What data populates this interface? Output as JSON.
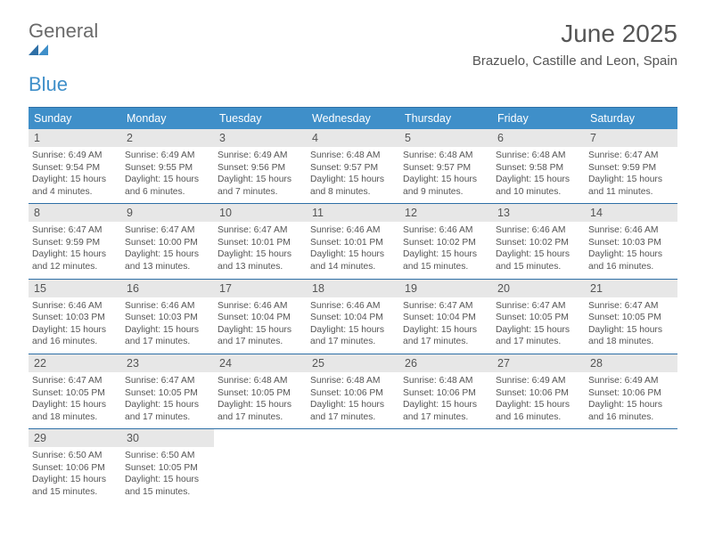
{
  "brand": {
    "general": "General",
    "blue": "Blue"
  },
  "title": "June 2025",
  "subtitle": "Brazuelo, Castille and Leon, Spain",
  "colors": {
    "header_bar": "#3f8fc9",
    "rule": "#2e6fa6",
    "daynum_bg": "#e7e7e7",
    "text": "#555555",
    "logo_gray": "#6a6a6a",
    "logo_blue": "#3f8fc9",
    "background": "#ffffff"
  },
  "weekdays": [
    "Sunday",
    "Monday",
    "Tuesday",
    "Wednesday",
    "Thursday",
    "Friday",
    "Saturday"
  ],
  "weeks": [
    [
      {
        "n": "1",
        "sr": "Sunrise: 6:49 AM",
        "ss": "Sunset: 9:54 PM",
        "d1": "Daylight: 15 hours",
        "d2": "and 4 minutes."
      },
      {
        "n": "2",
        "sr": "Sunrise: 6:49 AM",
        "ss": "Sunset: 9:55 PM",
        "d1": "Daylight: 15 hours",
        "d2": "and 6 minutes."
      },
      {
        "n": "3",
        "sr": "Sunrise: 6:49 AM",
        "ss": "Sunset: 9:56 PM",
        "d1": "Daylight: 15 hours",
        "d2": "and 7 minutes."
      },
      {
        "n": "4",
        "sr": "Sunrise: 6:48 AM",
        "ss": "Sunset: 9:57 PM",
        "d1": "Daylight: 15 hours",
        "d2": "and 8 minutes."
      },
      {
        "n": "5",
        "sr": "Sunrise: 6:48 AM",
        "ss": "Sunset: 9:57 PM",
        "d1": "Daylight: 15 hours",
        "d2": "and 9 minutes."
      },
      {
        "n": "6",
        "sr": "Sunrise: 6:48 AM",
        "ss": "Sunset: 9:58 PM",
        "d1": "Daylight: 15 hours",
        "d2": "and 10 minutes."
      },
      {
        "n": "7",
        "sr": "Sunrise: 6:47 AM",
        "ss": "Sunset: 9:59 PM",
        "d1": "Daylight: 15 hours",
        "d2": "and 11 minutes."
      }
    ],
    [
      {
        "n": "8",
        "sr": "Sunrise: 6:47 AM",
        "ss": "Sunset: 9:59 PM",
        "d1": "Daylight: 15 hours",
        "d2": "and 12 minutes."
      },
      {
        "n": "9",
        "sr": "Sunrise: 6:47 AM",
        "ss": "Sunset: 10:00 PM",
        "d1": "Daylight: 15 hours",
        "d2": "and 13 minutes."
      },
      {
        "n": "10",
        "sr": "Sunrise: 6:47 AM",
        "ss": "Sunset: 10:01 PM",
        "d1": "Daylight: 15 hours",
        "d2": "and 13 minutes."
      },
      {
        "n": "11",
        "sr": "Sunrise: 6:46 AM",
        "ss": "Sunset: 10:01 PM",
        "d1": "Daylight: 15 hours",
        "d2": "and 14 minutes."
      },
      {
        "n": "12",
        "sr": "Sunrise: 6:46 AM",
        "ss": "Sunset: 10:02 PM",
        "d1": "Daylight: 15 hours",
        "d2": "and 15 minutes."
      },
      {
        "n": "13",
        "sr": "Sunrise: 6:46 AM",
        "ss": "Sunset: 10:02 PM",
        "d1": "Daylight: 15 hours",
        "d2": "and 15 minutes."
      },
      {
        "n": "14",
        "sr": "Sunrise: 6:46 AM",
        "ss": "Sunset: 10:03 PM",
        "d1": "Daylight: 15 hours",
        "d2": "and 16 minutes."
      }
    ],
    [
      {
        "n": "15",
        "sr": "Sunrise: 6:46 AM",
        "ss": "Sunset: 10:03 PM",
        "d1": "Daylight: 15 hours",
        "d2": "and 16 minutes."
      },
      {
        "n": "16",
        "sr": "Sunrise: 6:46 AM",
        "ss": "Sunset: 10:03 PM",
        "d1": "Daylight: 15 hours",
        "d2": "and 17 minutes."
      },
      {
        "n": "17",
        "sr": "Sunrise: 6:46 AM",
        "ss": "Sunset: 10:04 PM",
        "d1": "Daylight: 15 hours",
        "d2": "and 17 minutes."
      },
      {
        "n": "18",
        "sr": "Sunrise: 6:46 AM",
        "ss": "Sunset: 10:04 PM",
        "d1": "Daylight: 15 hours",
        "d2": "and 17 minutes."
      },
      {
        "n": "19",
        "sr": "Sunrise: 6:47 AM",
        "ss": "Sunset: 10:04 PM",
        "d1": "Daylight: 15 hours",
        "d2": "and 17 minutes."
      },
      {
        "n": "20",
        "sr": "Sunrise: 6:47 AM",
        "ss": "Sunset: 10:05 PM",
        "d1": "Daylight: 15 hours",
        "d2": "and 17 minutes."
      },
      {
        "n": "21",
        "sr": "Sunrise: 6:47 AM",
        "ss": "Sunset: 10:05 PM",
        "d1": "Daylight: 15 hours",
        "d2": "and 18 minutes."
      }
    ],
    [
      {
        "n": "22",
        "sr": "Sunrise: 6:47 AM",
        "ss": "Sunset: 10:05 PM",
        "d1": "Daylight: 15 hours",
        "d2": "and 18 minutes."
      },
      {
        "n": "23",
        "sr": "Sunrise: 6:47 AM",
        "ss": "Sunset: 10:05 PM",
        "d1": "Daylight: 15 hours",
        "d2": "and 17 minutes."
      },
      {
        "n": "24",
        "sr": "Sunrise: 6:48 AM",
        "ss": "Sunset: 10:05 PM",
        "d1": "Daylight: 15 hours",
        "d2": "and 17 minutes."
      },
      {
        "n": "25",
        "sr": "Sunrise: 6:48 AM",
        "ss": "Sunset: 10:06 PM",
        "d1": "Daylight: 15 hours",
        "d2": "and 17 minutes."
      },
      {
        "n": "26",
        "sr": "Sunrise: 6:48 AM",
        "ss": "Sunset: 10:06 PM",
        "d1": "Daylight: 15 hours",
        "d2": "and 17 minutes."
      },
      {
        "n": "27",
        "sr": "Sunrise: 6:49 AM",
        "ss": "Sunset: 10:06 PM",
        "d1": "Daylight: 15 hours",
        "d2": "and 16 minutes."
      },
      {
        "n": "28",
        "sr": "Sunrise: 6:49 AM",
        "ss": "Sunset: 10:06 PM",
        "d1": "Daylight: 15 hours",
        "d2": "and 16 minutes."
      }
    ],
    [
      {
        "n": "29",
        "sr": "Sunrise: 6:50 AM",
        "ss": "Sunset: 10:06 PM",
        "d1": "Daylight: 15 hours",
        "d2": "and 15 minutes."
      },
      {
        "n": "30",
        "sr": "Sunrise: 6:50 AM",
        "ss": "Sunset: 10:05 PM",
        "d1": "Daylight: 15 hours",
        "d2": "and 15 minutes."
      },
      null,
      null,
      null,
      null,
      null
    ]
  ]
}
